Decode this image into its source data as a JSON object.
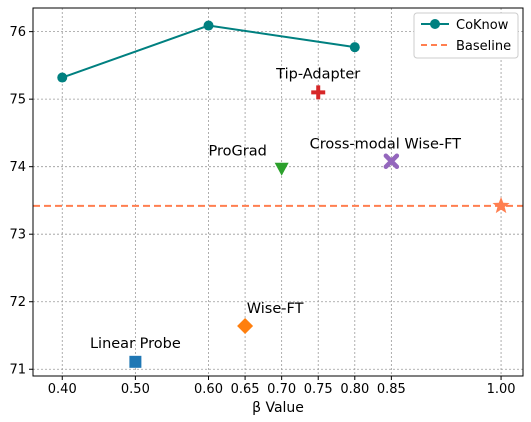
{
  "chart_data": {
    "type": "line",
    "title": "",
    "xlabel": "β Value",
    "ylabel": "",
    "xlim": [
      0.36,
      1.03
    ],
    "ylim": [
      70.9,
      76.35
    ],
    "xticks": [
      0.4,
      0.5,
      0.6,
      0.65,
      0.7,
      0.75,
      0.8,
      0.85,
      1.0
    ],
    "xtick_labels": [
      "0.40",
      "0.50",
      "0.60",
      "0.65",
      "0.70",
      "0.75",
      "0.80",
      "0.85",
      "1.00"
    ],
    "yticks": [
      71,
      72,
      73,
      74,
      75,
      76
    ],
    "ytick_labels": [
      "71",
      "72",
      "73",
      "74",
      "75",
      "76"
    ],
    "grid": true,
    "grid_style": "dotted",
    "legend_position": "top-right",
    "series": [
      {
        "name": "CoKnow",
        "color": "#008080",
        "marker": "circle",
        "x": [
          0.4,
          0.6,
          0.8
        ],
        "y": [
          75.32,
          76.09,
          75.77
        ]
      },
      {
        "name": "Baseline",
        "color": "#ff7f50",
        "style": "dashed",
        "y_constant": 73.42
      }
    ],
    "points": [
      {
        "label": "Linear Probe",
        "x": 0.5,
        "y": 71.11,
        "marker": "square",
        "color": "#1f77b4"
      },
      {
        "label": "Wise-FT",
        "x": 0.65,
        "y": 71.64,
        "marker": "diamond",
        "color": "#ff7f0e"
      },
      {
        "label": "ProGrad",
        "x": 0.7,
        "y": 73.97,
        "marker": "triangle-down",
        "color": "#2ca02c"
      },
      {
        "label": "Tip-Adapter",
        "x": 0.75,
        "y": 75.1,
        "marker": "plus",
        "color": "#d62728"
      },
      {
        "label": "Cross-modal Wise-FT",
        "x": 0.85,
        "y": 74.08,
        "marker": "x",
        "color": "#9467bd"
      },
      {
        "label": "",
        "x": 1.0,
        "y": 73.42,
        "marker": "star",
        "color": "#ff7f50"
      }
    ]
  }
}
